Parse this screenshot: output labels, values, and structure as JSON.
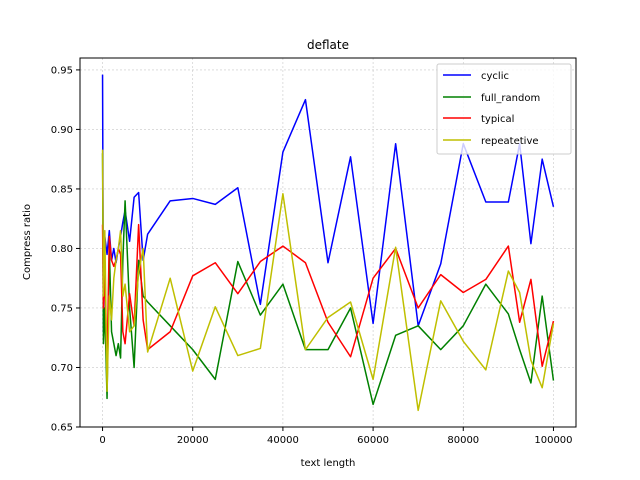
{
  "chart_data": {
    "type": "line",
    "title": "deflate",
    "xlabel": "text length",
    "ylabel": "Compress ratio",
    "xlim": [
      -5000,
      105000
    ],
    "ylim": [
      0.65,
      0.96
    ],
    "xticks": [
      0,
      20000,
      40000,
      60000,
      80000,
      100000
    ],
    "yticks": [
      0.65,
      0.7,
      0.75,
      0.8,
      0.85,
      0.9,
      0.95
    ],
    "ytick_labels": [
      "0.65",
      "0.70",
      "0.75",
      "0.80",
      "0.85",
      "0.90",
      "0.95"
    ],
    "grid": true,
    "legend": "top-right",
    "series": [
      {
        "name": "cyclic",
        "color": "#0000ff",
        "x": [
          0,
          200,
          500,
          1000,
          1500,
          2000,
          2500,
          3000,
          3500,
          4000,
          4500,
          5000,
          6000,
          7000,
          8000,
          9000,
          10000,
          15000,
          20000,
          25000,
          30000,
          35000,
          40000,
          45000,
          50000,
          55000,
          60000,
          65000,
          70000,
          75000,
          80000,
          85000,
          90000,
          92500,
          95000,
          97500,
          100000
        ],
        "y": [
          0.946,
          0.73,
          0.81,
          0.795,
          0.815,
          0.79,
          0.8,
          0.788,
          0.8,
          0.81,
          0.822,
          0.832,
          0.806,
          0.843,
          0.847,
          0.79,
          0.812,
          0.84,
          0.842,
          0.837,
          0.851,
          0.753,
          0.881,
          0.925,
          0.788,
          0.877,
          0.737,
          0.888,
          0.735,
          0.787,
          0.888,
          0.839,
          0.839,
          0.888,
          0.804,
          0.875,
          0.835
        ]
      },
      {
        "name": "full_random",
        "color": "#008000",
        "x": [
          0,
          200,
          500,
          1000,
          1500,
          2000,
          2500,
          3000,
          3500,
          4000,
          4500,
          5000,
          6000,
          7000,
          8000,
          9000,
          10000,
          15000,
          20000,
          25000,
          30000,
          35000,
          40000,
          45000,
          50000,
          55000,
          60000,
          65000,
          70000,
          75000,
          80000,
          85000,
          90000,
          92500,
          95000,
          97500,
          100000
        ],
        "y": [
          0.88,
          0.72,
          0.75,
          0.674,
          0.8,
          0.73,
          0.72,
          0.71,
          0.72,
          0.708,
          0.79,
          0.84,
          0.75,
          0.7,
          0.79,
          0.76,
          0.755,
          0.735,
          0.715,
          0.69,
          0.789,
          0.744,
          0.77,
          0.715,
          0.715,
          0.75,
          0.669,
          0.727,
          0.735,
          0.715,
          0.735,
          0.77,
          0.745,
          0.715,
          0.687,
          0.76,
          0.689
        ]
      },
      {
        "name": "typical",
        "color": "#ff0000",
        "x": [
          0,
          200,
          500,
          1000,
          1500,
          2000,
          2500,
          3000,
          3500,
          4000,
          4500,
          5000,
          6000,
          7000,
          8000,
          9000,
          10000,
          15000,
          20000,
          25000,
          30000,
          35000,
          40000,
          45000,
          50000,
          55000,
          60000,
          65000,
          70000,
          75000,
          80000,
          85000,
          90000,
          92500,
          95000,
          97500,
          100000
        ],
        "y": [
          0.82,
          0.75,
          0.78,
          0.7,
          0.81,
          0.79,
          0.785,
          0.79,
          0.8,
          0.795,
          0.73,
          0.72,
          0.762,
          0.735,
          0.82,
          0.74,
          0.715,
          0.73,
          0.777,
          0.788,
          0.762,
          0.789,
          0.802,
          0.788,
          0.738,
          0.709,
          0.775,
          0.8,
          0.75,
          0.778,
          0.763,
          0.774,
          0.802,
          0.738,
          0.774,
          0.701,
          0.739
        ]
      },
      {
        "name": "repeatetive",
        "color": "#bfbf00",
        "x": [
          0,
          200,
          500,
          1000,
          1500,
          2000,
          2500,
          3000,
          3500,
          4000,
          4500,
          5000,
          6000,
          7000,
          8000,
          9000,
          10000,
          15000,
          20000,
          25000,
          30000,
          35000,
          40000,
          45000,
          50000,
          55000,
          60000,
          65000,
          70000,
          75000,
          80000,
          85000,
          90000,
          92500,
          95000,
          97500,
          100000
        ],
        "y": [
          0.883,
          0.76,
          0.815,
          0.68,
          0.76,
          0.74,
          0.775,
          0.79,
          0.8,
          0.815,
          0.76,
          0.77,
          0.73,
          0.735,
          0.78,
          0.8,
          0.713,
          0.775,
          0.697,
          0.751,
          0.71,
          0.716,
          0.846,
          0.715,
          0.742,
          0.755,
          0.69,
          0.801,
          0.664,
          0.756,
          0.722,
          0.698,
          0.781,
          0.763,
          0.706,
          0.683,
          0.737
        ]
      }
    ]
  }
}
